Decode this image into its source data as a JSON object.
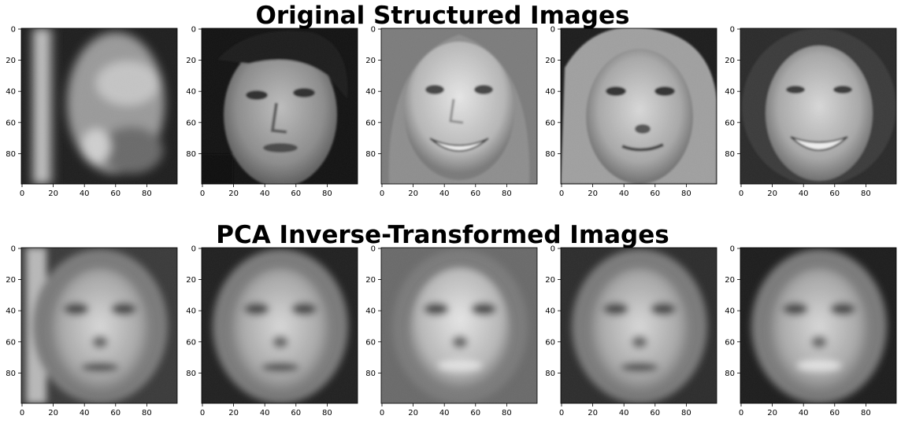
{
  "figure": {
    "titles": {
      "top": "Original Structured Images",
      "bottom": "PCA Inverse-Transformed Images"
    },
    "axis": {
      "x_ticks": [
        "0",
        "20",
        "40",
        "60",
        "80"
      ],
      "y_ticks": [
        "0",
        "20",
        "40",
        "60",
        "80"
      ],
      "x_range": [
        0,
        99
      ],
      "y_range": [
        0,
        99
      ],
      "colormap": "gray"
    },
    "rows": [
      {
        "id": "original",
        "images": [
          {
            "subject": "face-profile-behind-pole"
          },
          {
            "subject": "young-man-looking-up"
          },
          {
            "subject": "smiling-woman-straight-hair"
          },
          {
            "subject": "woman-slight-smile"
          },
          {
            "subject": "laughing-woman-curly-hair"
          }
        ]
      },
      {
        "id": "reconstructed",
        "images": [
          {
            "subject": "blurred-face-reconstruction-1"
          },
          {
            "subject": "blurred-face-reconstruction-2"
          },
          {
            "subject": "blurred-face-reconstruction-3"
          },
          {
            "subject": "blurred-face-reconstruction-4"
          },
          {
            "subject": "blurred-face-reconstruction-5"
          }
        ]
      }
    ]
  }
}
